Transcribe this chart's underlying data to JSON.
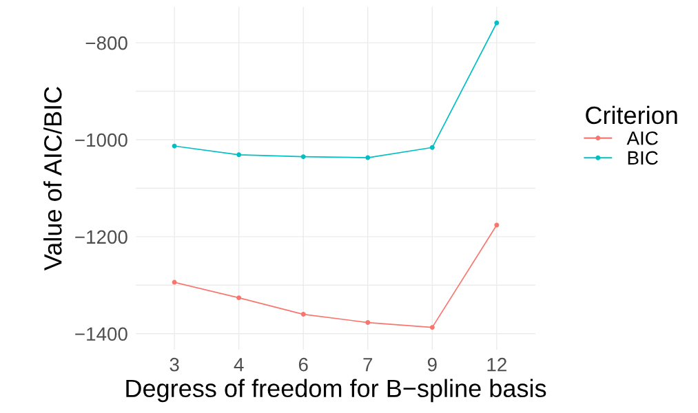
{
  "chart_data": {
    "type": "line",
    "xlabel": "Degress of freedom for B−spline basis",
    "ylabel": "Value of AIC/BIC",
    "legend_title": "Criterion",
    "categories": [
      "3",
      "4",
      "6",
      "7",
      "9",
      "12"
    ],
    "series": [
      {
        "name": "AIC",
        "color": "#f8766d",
        "values": [
          -1294,
          -1326,
          -1360,
          -1377,
          -1387,
          -1176
        ]
      },
      {
        "name": "BIC",
        "color": "#00bfc4",
        "values": [
          -1013,
          -1031,
          -1035,
          -1037,
          -1016,
          -759
        ]
      }
    ],
    "ylim": [
      -1433,
      -726
    ],
    "yticks": [
      {
        "value": -1400,
        "label": "−1400"
      },
      {
        "value": -1300,
        "label": null
      },
      {
        "value": -1200,
        "label": "−1200"
      },
      {
        "value": -1100,
        "label": null
      },
      {
        "value": -1000,
        "label": "−1000"
      },
      {
        "value": -900,
        "label": null
      },
      {
        "value": -800,
        "label": "−800"
      }
    ],
    "grid": true,
    "legend": "right",
    "marker": "circle",
    "line_style": "solid"
  }
}
